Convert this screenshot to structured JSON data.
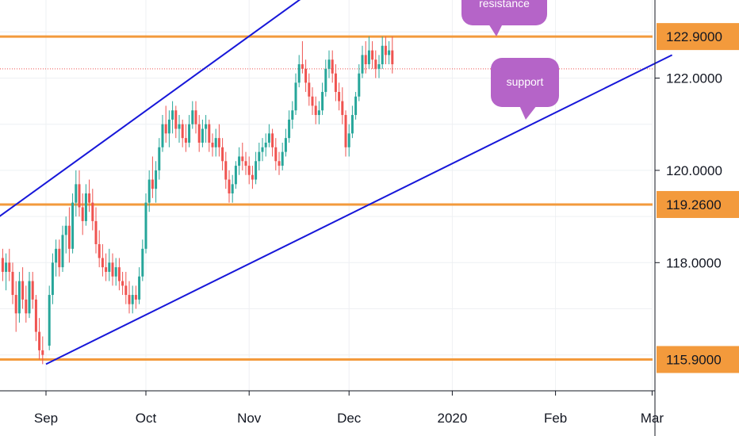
{
  "chart_data": {
    "type": "candlestick",
    "x_axis": {
      "tick_labels": [
        "Sep",
        "Oct",
        "Nov",
        "Dec",
        "2020",
        "Feb",
        "Mar"
      ],
      "tick_days": [
        0,
        30,
        61,
        91,
        122,
        153,
        182
      ]
    },
    "y_axis": {
      "tick_labels": [
        "122.0000",
        "120.0000",
        "118.0000"
      ],
      "tick_values": [
        122.0,
        120.0,
        118.0
      ],
      "range": [
        114.8,
        124.5
      ]
    },
    "horizontal_levels": [
      {
        "label": "122.9000",
        "value": 122.9
      },
      {
        "label": "119.2600",
        "value": 119.26
      },
      {
        "label": "115.9000",
        "value": 115.9
      }
    ],
    "last_price_line": 122.2,
    "channel": {
      "upper": [
        {
          "day": -14,
          "price": 119.0
        },
        {
          "day": 105,
          "price": 125.2
        }
      ],
      "lower": [
        {
          "day": 0,
          "price": 115.8
        },
        {
          "day": 188,
          "price": 122.5
        }
      ]
    },
    "annotations": [
      {
        "text": "resistance",
        "day": 136,
        "price": 123.8
      },
      {
        "text": "support",
        "day": 147,
        "price": 122.0
      }
    ],
    "candles": [
      [
        -13,
        118.1,
        118.3,
        117.6,
        117.8
      ],
      [
        -12,
        117.8,
        118.2,
        117.4,
        118.0
      ],
      [
        -11,
        118.0,
        118.3,
        117.6,
        117.8
      ],
      [
        -10,
        117.8,
        118.0,
        117.1,
        117.3
      ],
      [
        -9,
        117.3,
        117.6,
        116.5,
        116.9
      ],
      [
        -8,
        116.9,
        117.8,
        116.7,
        117.6
      ],
      [
        -7,
        117.6,
        117.9,
        117.0,
        117.2
      ],
      [
        -6,
        117.2,
        117.5,
        116.7,
        116.9
      ],
      [
        -5,
        116.9,
        117.8,
        116.8,
        117.6
      ],
      [
        -4,
        117.6,
        117.8,
        117.0,
        117.2
      ],
      [
        -3,
        117.2,
        117.3,
        116.3,
        116.5
      ],
      [
        -2,
        116.5,
        116.8,
        115.9,
        116.1
      ],
      [
        -1,
        116.1,
        116.4,
        115.8,
        116.0
      ],
      [
        1,
        116.2,
        117.5,
        116.1,
        117.3
      ],
      [
        2,
        117.3,
        118.2,
        117.1,
        118.0
      ],
      [
        3,
        118.0,
        118.5,
        117.7,
        118.3
      ],
      [
        4,
        118.3,
        118.5,
        117.7,
        117.9
      ],
      [
        5,
        117.9,
        118.8,
        117.8,
        118.6
      ],
      [
        6,
        118.6,
        119.0,
        118.2,
        118.8
      ],
      [
        7,
        118.8,
        119.2,
        118.0,
        118.3
      ],
      [
        8,
        118.3,
        119.5,
        118.2,
        119.3
      ],
      [
        9,
        119.3,
        120.0,
        119.0,
        119.7
      ],
      [
        10,
        119.7,
        120.0,
        119.0,
        119.2
      ],
      [
        11,
        119.2,
        119.5,
        118.6,
        118.9
      ],
      [
        12,
        118.9,
        119.7,
        118.8,
        119.5
      ],
      [
        13,
        119.5,
        119.8,
        119.1,
        119.3
      ],
      [
        14,
        119.3,
        119.6,
        118.7,
        118.9
      ],
      [
        15,
        118.9,
        119.2,
        118.2,
        118.4
      ],
      [
        16,
        118.4,
        118.7,
        117.9,
        118.1
      ],
      [
        17,
        118.1,
        118.4,
        117.7,
        117.9
      ],
      [
        18,
        117.9,
        118.2,
        117.6,
        117.8
      ],
      [
        19,
        117.8,
        118.3,
        117.6,
        118.0
      ],
      [
        20,
        118.0,
        118.2,
        117.5,
        117.7
      ],
      [
        21,
        117.7,
        118.1,
        117.5,
        117.9
      ],
      [
        22,
        117.9,
        118.1,
        117.4,
        117.6
      ],
      [
        23,
        117.6,
        117.8,
        117.3,
        117.5
      ],
      [
        24,
        117.5,
        117.8,
        117.1,
        117.3
      ],
      [
        25,
        117.3,
        117.6,
        116.9,
        117.1
      ],
      [
        26,
        117.1,
        117.5,
        116.9,
        117.3
      ],
      [
        27,
        117.3,
        117.5,
        117.0,
        117.2
      ],
      [
        28,
        117.2,
        117.9,
        117.1,
        117.7
      ],
      [
        29,
        117.7,
        118.5,
        117.6,
        118.3
      ],
      [
        30,
        118.3,
        119.5,
        118.2,
        119.3
      ],
      [
        31,
        119.3,
        120.0,
        119.1,
        119.8
      ],
      [
        32,
        119.8,
        120.3,
        119.4,
        119.6
      ],
      [
        33,
        119.6,
        120.2,
        119.3,
        120.0
      ],
      [
        34,
        120.0,
        120.7,
        119.8,
        120.5
      ],
      [
        35,
        120.5,
        121.2,
        120.4,
        121.0
      ],
      [
        36,
        121.0,
        121.4,
        120.6,
        120.8
      ],
      [
        37,
        120.8,
        121.3,
        120.5,
        121.1
      ],
      [
        38,
        121.1,
        121.5,
        120.8,
        121.3
      ],
      [
        39,
        121.3,
        121.4,
        120.7,
        120.9
      ],
      [
        40,
        120.9,
        121.2,
        120.6,
        121.0
      ],
      [
        41,
        121.0,
        121.1,
        120.5,
        120.7
      ],
      [
        42,
        120.7,
        121.0,
        120.4,
        120.6
      ],
      [
        43,
        120.6,
        121.2,
        120.5,
        121.0
      ],
      [
        44,
        121.0,
        121.5,
        120.9,
        121.3
      ],
      [
        45,
        121.3,
        121.5,
        120.8,
        121.0
      ],
      [
        46,
        121.0,
        121.2,
        120.4,
        120.6
      ],
      [
        47,
        120.6,
        121.1,
        120.5,
        120.9
      ],
      [
        48,
        120.9,
        121.2,
        120.6,
        121.0
      ],
      [
        49,
        121.0,
        121.1,
        120.4,
        120.6
      ],
      [
        50,
        120.6,
        120.8,
        120.3,
        120.5
      ],
      [
        51,
        120.5,
        120.9,
        120.3,
        120.7
      ],
      [
        52,
        120.7,
        121.0,
        120.3,
        120.5
      ],
      [
        53,
        120.5,
        120.7,
        120.0,
        120.2
      ],
      [
        54,
        120.2,
        120.4,
        119.6,
        119.8
      ],
      [
        55,
        119.8,
        120.0,
        119.3,
        119.5
      ],
      [
        56,
        119.5,
        119.9,
        119.3,
        119.7
      ],
      [
        57,
        119.7,
        120.2,
        119.6,
        120.1
      ],
      [
        58,
        120.1,
        120.5,
        119.9,
        120.3
      ],
      [
        59,
        120.3,
        120.6,
        120.0,
        120.2
      ],
      [
        60,
        120.2,
        120.4,
        119.9,
        120.1
      ],
      [
        61,
        120.1,
        120.3,
        119.7,
        119.9
      ],
      [
        62,
        119.9,
        120.1,
        119.6,
        119.8
      ],
      [
        63,
        119.8,
        120.4,
        119.7,
        120.2
      ],
      [
        64,
        120.2,
        120.6,
        120.0,
        120.4
      ],
      [
        65,
        120.4,
        120.7,
        120.2,
        120.5
      ],
      [
        66,
        120.5,
        120.8,
        120.3,
        120.6
      ],
      [
        67,
        120.6,
        121.0,
        120.5,
        120.8
      ],
      [
        68,
        120.8,
        120.9,
        120.3,
        120.5
      ],
      [
        69,
        120.5,
        120.7,
        120.0,
        120.2
      ],
      [
        70,
        120.2,
        120.4,
        119.9,
        120.1
      ],
      [
        71,
        120.1,
        120.6,
        120.0,
        120.4
      ],
      [
        72,
        120.4,
        120.9,
        120.3,
        120.7
      ],
      [
        73,
        120.7,
        121.3,
        120.6,
        121.1
      ],
      [
        74,
        121.1,
        121.5,
        120.9,
        121.3
      ],
      [
        75,
        121.3,
        122.1,
        121.2,
        121.9
      ],
      [
        76,
        121.9,
        122.5,
        121.8,
        122.3
      ],
      [
        77,
        122.3,
        122.8,
        122.1,
        122.2
      ],
      [
        78,
        122.2,
        122.4,
        121.7,
        121.9
      ],
      [
        79,
        121.9,
        122.1,
        121.4,
        121.6
      ],
      [
        80,
        121.6,
        121.8,
        121.2,
        121.4
      ],
      [
        81,
        121.4,
        121.6,
        121.0,
        121.2
      ],
      [
        82,
        121.2,
        121.5,
        121.0,
        121.3
      ],
      [
        83,
        121.3,
        121.9,
        121.2,
        121.7
      ],
      [
        84,
        121.7,
        122.4,
        121.6,
        122.2
      ],
      [
        85,
        122.2,
        122.6,
        122.0,
        122.4
      ],
      [
        86,
        122.4,
        122.6,
        121.9,
        122.1
      ],
      [
        87,
        122.1,
        122.3,
        121.5,
        121.7
      ],
      [
        88,
        121.7,
        121.9,
        121.3,
        121.5
      ],
      [
        89,
        121.5,
        121.8,
        121.0,
        121.2
      ],
      [
        90,
        121.2,
        121.3,
        120.3,
        120.5
      ],
      [
        91,
        120.5,
        121.0,
        120.3,
        120.8
      ],
      [
        92,
        120.8,
        121.4,
        120.7,
        121.2
      ],
      [
        93,
        121.2,
        121.7,
        121.1,
        121.6
      ],
      [
        94,
        121.6,
        122.3,
        121.5,
        122.1
      ],
      [
        95,
        122.1,
        122.7,
        122.0,
        122.5
      ],
      [
        96,
        122.5,
        122.8,
        122.1,
        122.3
      ],
      [
        97,
        122.3,
        122.9,
        122.2,
        122.6
      ],
      [
        98,
        122.6,
        122.8,
        122.2,
        122.4
      ],
      [
        99,
        122.4,
        122.6,
        122.0,
        122.2
      ],
      [
        100,
        122.2,
        122.5,
        122.0,
        122.3
      ],
      [
        101,
        122.3,
        122.9,
        122.2,
        122.7
      ],
      [
        102,
        122.7,
        122.9,
        122.3,
        122.5
      ],
      [
        103,
        122.5,
        122.8,
        122.3,
        122.6
      ],
      [
        104,
        122.6,
        122.9,
        122.1,
        122.3
      ]
    ]
  }
}
